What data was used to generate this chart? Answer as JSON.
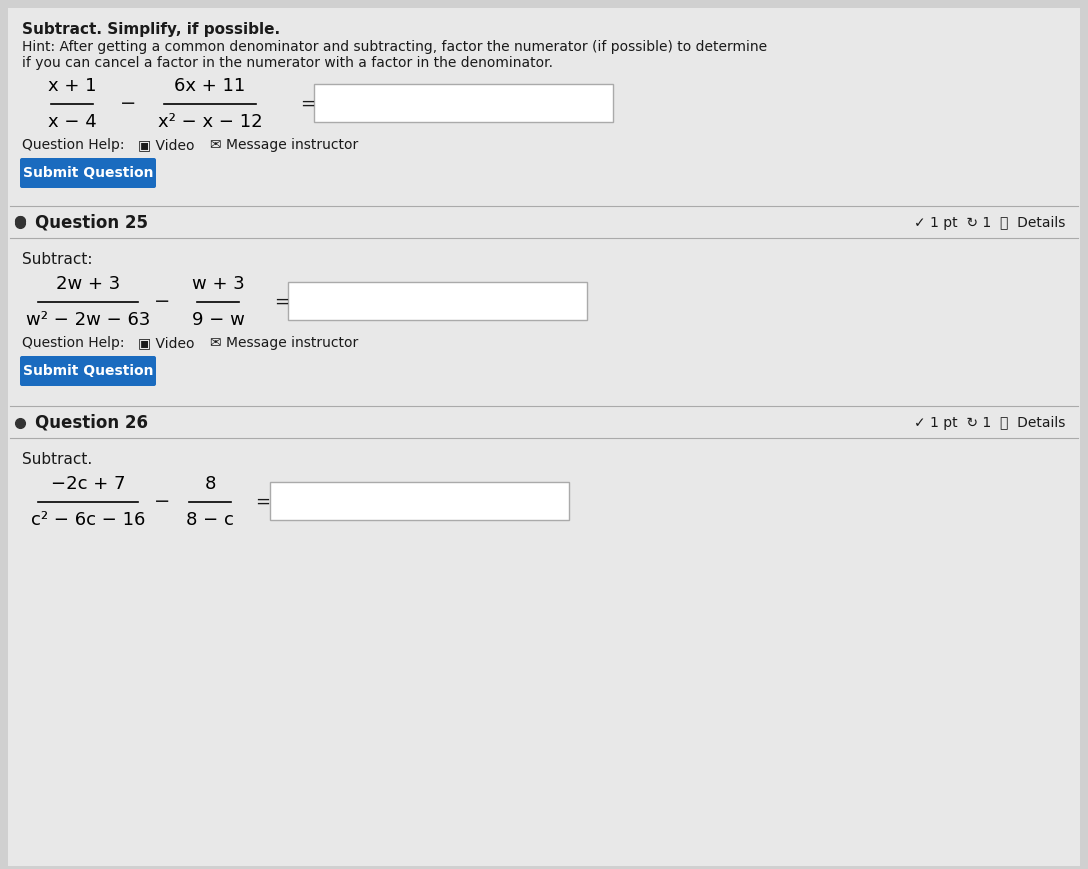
{
  "bg_color": "#d0d0d0",
  "panel_color": "#e8e8e8",
  "dark_text": "#1a1a1a",
  "button_color": "#1a6bbf",
  "button_text": "#ffffff",
  "header_top_text": "Subtract. Simplify, if possible.",
  "header_hint_line1": "Hint: After getting a common denominator and subtracting, factor the numerator (if possible) to determine",
  "header_hint_line2": "if you can cancel a factor in the numerator with a factor in the denominator.",
  "q24_frac1_num": "x + 1",
  "q24_frac1_den": "x − 4",
  "q24_frac2_num": "6x + 11",
  "q24_frac2_den": "x² − x − 12",
  "q24_button": "Submit Question",
  "q25_title": "Question 25",
  "q25_pts": "✓ 1 pt  ↻ 1  ⓘ  Details",
  "q25_label": "Subtract:",
  "q25_frac1_num": "2w + 3",
  "q25_frac1_den": "w² − 2w − 63",
  "q25_frac2_num": "w + 3",
  "q25_frac2_den": "9 − w",
  "q25_button": "Submit Question",
  "q26_title": "Question 26",
  "q26_pts": "✓ 1 pt  ↻ 1  ⓘ  Details",
  "q26_label": "Subtract.",
  "q26_frac1_num": "−2c + 7",
  "q26_frac1_den": "c² − 6c − 16",
  "q26_frac2_num": "8",
  "q26_frac2_den": "8 − c"
}
